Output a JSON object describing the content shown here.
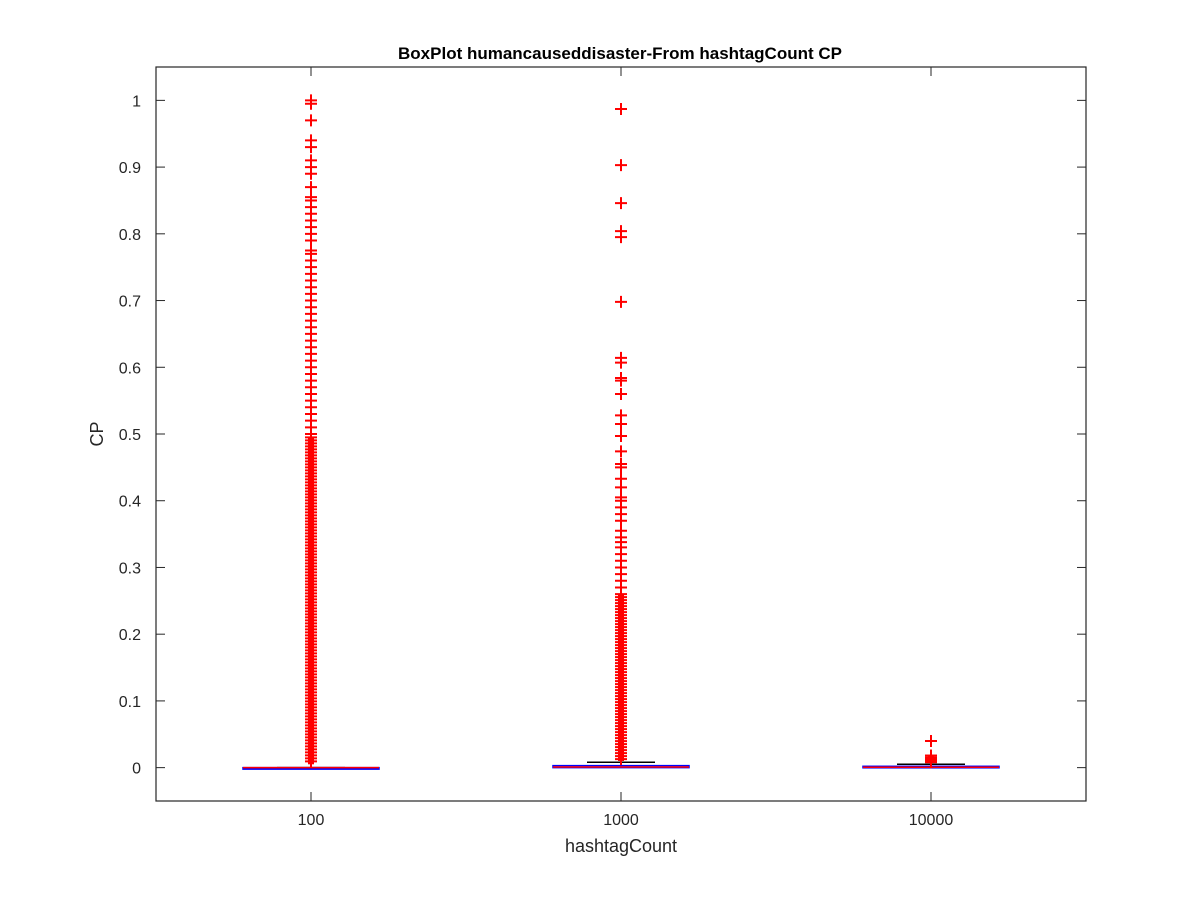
{
  "chart_data": {
    "type": "box",
    "title": "BoxPlot humancauseddisaster-From hashtagCount CP",
    "xlabel": "hashtagCount",
    "ylabel": "CP",
    "categories": [
      "100",
      "1000",
      "10000"
    ],
    "ylim": [
      -0.05,
      1.05
    ],
    "yticks": [
      0,
      0.1,
      0.2,
      0.3,
      0.4,
      0.5,
      0.6,
      0.7,
      0.8,
      0.9,
      1
    ],
    "ytick_labels": [
      "0",
      "0.1",
      "0.2",
      "0.3",
      "0.4",
      "0.5",
      "0.6",
      "0.7",
      "0.8",
      "0.9",
      "1"
    ],
    "grid": false,
    "colors": {
      "box": "#0000ff",
      "median": "#ff0000",
      "whisker": "#000000",
      "outlier": "#ff0000",
      "axis": "#262626"
    },
    "boxes": [
      {
        "category": "100",
        "q1": 0,
        "median": 0,
        "q3": 0,
        "whisker_low": 0,
        "whisker_high": 0,
        "outlier_dense_range": [
          0.005,
          0.495
        ],
        "outliers": [
          1.0,
          0.995,
          0.97,
          0.94,
          0.93,
          0.91,
          0.9,
          0.89,
          0.87,
          0.855,
          0.85,
          0.84,
          0.83,
          0.82,
          0.81,
          0.8,
          0.79,
          0.775,
          0.77,
          0.76,
          0.75,
          0.74,
          0.73,
          0.72,
          0.71,
          0.7,
          0.69,
          0.68,
          0.67,
          0.66,
          0.65,
          0.64,
          0.63,
          0.62,
          0.61,
          0.6,
          0.59,
          0.58,
          0.57,
          0.56,
          0.55,
          0.54,
          0.53,
          0.52,
          0.51,
          0.5
        ]
      },
      {
        "category": "1000",
        "q1": 0,
        "median": 0.001,
        "q3": 0.003,
        "whisker_low": 0,
        "whisker_high": 0.008,
        "outlier_dense_range": [
          0.01,
          0.26
        ],
        "outliers": [
          0.987,
          0.903,
          0.846,
          0.804,
          0.795,
          0.698,
          0.614,
          0.607,
          0.584,
          0.58,
          0.56,
          0.528,
          0.515,
          0.497,
          0.474,
          0.455,
          0.45,
          0.433,
          0.42,
          0.405,
          0.4,
          0.39,
          0.38,
          0.37,
          0.355,
          0.345,
          0.338,
          0.33,
          0.32,
          0.31,
          0.3,
          0.29,
          0.28,
          0.27
        ]
      },
      {
        "category": "10000",
        "q1": 0,
        "median": 0.0005,
        "q3": 0.002,
        "whisker_low": 0,
        "whisker_high": 0.005,
        "outlier_dense_range": [
          0.007,
          0.018
        ],
        "outliers": [
          0.04,
          0.018,
          0.015,
          0.012,
          0.01,
          0.008
        ]
      }
    ]
  }
}
